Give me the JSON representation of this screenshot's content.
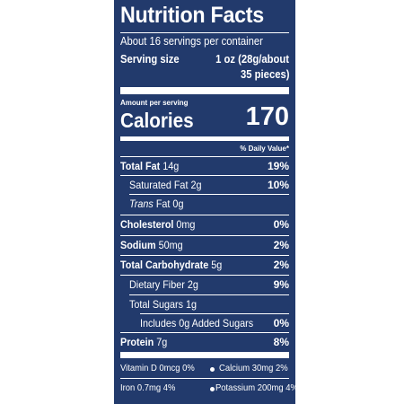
{
  "label": {
    "title": "Nutrition Facts",
    "servings": "About 16 servings per container",
    "serving_size_label": "Serving size",
    "serving_size_value_1": "1 oz (28g/about",
    "serving_size_value_2": "35 pieces)",
    "amount_per_serving": "Amount per serving",
    "calories_label": "Calories",
    "calories_value": "170",
    "daily_value_header": "% Daily Value*",
    "nutrients": [
      {
        "name": "Total Fat",
        "amount": "14g",
        "dv": "19%"
      },
      {
        "name": "Saturated Fat",
        "amount": "2g",
        "dv": "10%"
      },
      {
        "name": "Trans",
        "amount": "Fat 0g",
        "dv": ""
      },
      {
        "name": "Cholesterol",
        "amount": "0mg",
        "dv": "0%"
      },
      {
        "name": "Sodium",
        "amount": "50mg",
        "dv": "2%"
      },
      {
        "name": "Total Carbohydrate",
        "amount": "5g",
        "dv": "2%"
      },
      {
        "name": "Dietary Fiber",
        "amount": "2g",
        "dv": "9%"
      },
      {
        "name": "Total Sugars",
        "amount": "1g",
        "dv": ""
      },
      {
        "name": "Includes 0g Added Sugars",
        "amount": "",
        "dv": "0%"
      },
      {
        "name": "Protein",
        "amount": "7g",
        "dv": "8%"
      }
    ],
    "vitamins": {
      "vitamin_d": "Vitamin D 0mcg 0%",
      "calcium": "Calcium 30mg 2%",
      "iron": "Iron 0.7mg 4%",
      "potassium": "Potassium 200mg 4%"
    }
  },
  "colors": {
    "panel": "#223a6c",
    "text": "#ffffff",
    "background": "#ffffff"
  }
}
